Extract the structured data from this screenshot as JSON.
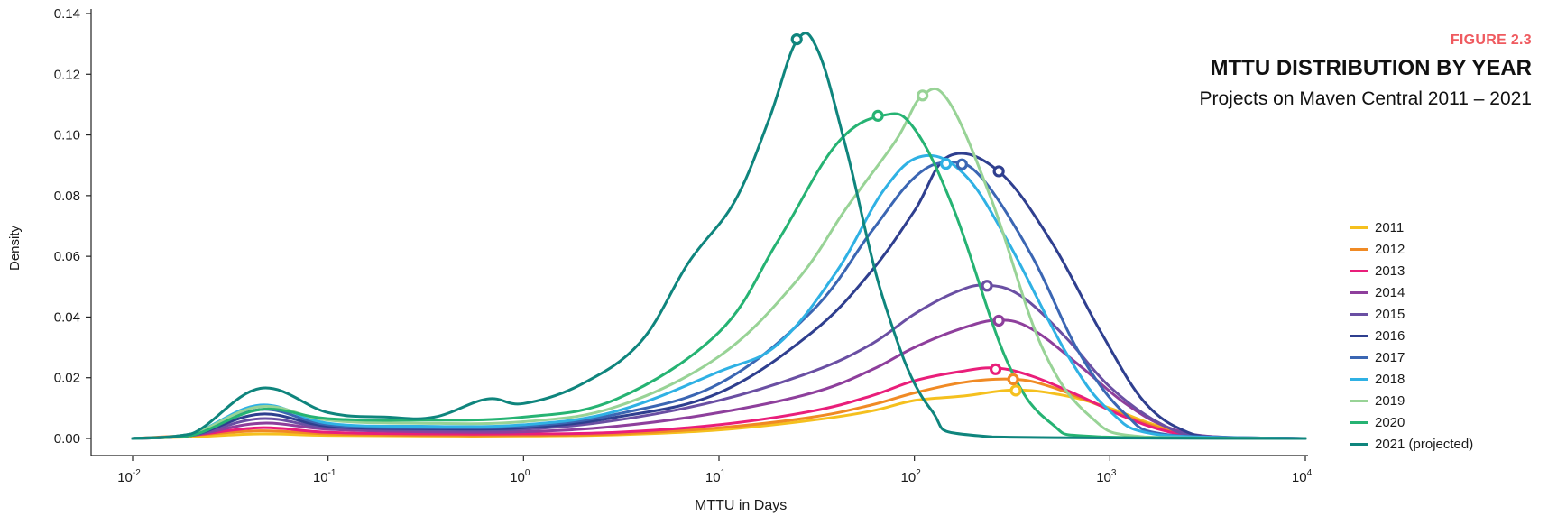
{
  "figure_label": "FIGURE 2.3",
  "chart_data": {
    "type": "line",
    "title": "MTTU DISTRIBUTION BY YEAR",
    "subtitle": "Projects on Maven Central 2011 – 2021",
    "xlabel": "MTTU in Days",
    "ylabel": "Density",
    "x_scale": "log",
    "xlim": [
      0.01,
      10000
    ],
    "ylim": [
      0,
      0.14
    ],
    "x_ticks": [
      {
        "base": "10",
        "exp": "-2"
      },
      {
        "base": "10",
        "exp": "-1"
      },
      {
        "base": "10",
        "exp": "0"
      },
      {
        "base": "10",
        "exp": "1"
      },
      {
        "base": "10",
        "exp": "2"
      },
      {
        "base": "10",
        "exp": "3"
      },
      {
        "base": "10",
        "exp": "4"
      }
    ],
    "y_ticks": [
      "0.00",
      "0.02",
      "0.04",
      "0.06",
      "0.08",
      "0.10",
      "0.12",
      "0.14"
    ],
    "grid": false,
    "legend_position": "right",
    "series": [
      {
        "name": "2011",
        "color": "#f5c01e",
        "points": [
          [
            0.01,
            0
          ],
          [
            0.02,
            0.0005
          ],
          [
            0.045,
            0.0015
          ],
          [
            0.1,
            0.001
          ],
          [
            0.3,
            0.0008
          ],
          [
            1,
            0.0008
          ],
          [
            3,
            0.0012
          ],
          [
            10,
            0.0028
          ],
          [
            30,
            0.006
          ],
          [
            60,
            0.009
          ],
          [
            100,
            0.0125
          ],
          [
            180,
            0.014
          ],
          [
            330,
            0.016
          ],
          [
            600,
            0.014
          ],
          [
            1000,
            0.01
          ],
          [
            1600,
            0.005
          ],
          [
            2500,
            0.0015
          ],
          [
            4000,
            0.0002
          ],
          [
            10000,
            0
          ]
        ],
        "marker": [
          330,
          0.0158
        ]
      },
      {
        "name": "2012",
        "color": "#f08a24",
        "points": [
          [
            0.01,
            0
          ],
          [
            0.02,
            0.001
          ],
          [
            0.045,
            0.0025
          ],
          [
            0.1,
            0.0015
          ],
          [
            0.3,
            0.001
          ],
          [
            1,
            0.001
          ],
          [
            3,
            0.0015
          ],
          [
            10,
            0.0035
          ],
          [
            30,
            0.007
          ],
          [
            60,
            0.011
          ],
          [
            100,
            0.015
          ],
          [
            180,
            0.0185
          ],
          [
            320,
            0.0195
          ],
          [
            500,
            0.017
          ],
          [
            1000,
            0.0095
          ],
          [
            1600,
            0.0045
          ],
          [
            2500,
            0.0012
          ],
          [
            4000,
            0.0002
          ],
          [
            10000,
            0
          ]
        ],
        "marker": [
          320,
          0.0195
        ]
      },
      {
        "name": "2013",
        "color": "#e91e7a",
        "points": [
          [
            0.01,
            0
          ],
          [
            0.02,
            0.001
          ],
          [
            0.045,
            0.0035
          ],
          [
            0.1,
            0.002
          ],
          [
            0.3,
            0.0015
          ],
          [
            1,
            0.0015
          ],
          [
            3,
            0.002
          ],
          [
            10,
            0.0045
          ],
          [
            30,
            0.009
          ],
          [
            60,
            0.014
          ],
          [
            100,
            0.019
          ],
          [
            170,
            0.022
          ],
          [
            260,
            0.0232
          ],
          [
            400,
            0.0205
          ],
          [
            700,
            0.014
          ],
          [
            1200,
            0.007
          ],
          [
            2000,
            0.0022
          ],
          [
            3500,
            0.0003
          ],
          [
            10000,
            0
          ]
        ],
        "marker": [
          260,
          0.0228
        ]
      },
      {
        "name": "2014",
        "color": "#8e3f9c",
        "points": [
          [
            0.01,
            0
          ],
          [
            0.02,
            0.001
          ],
          [
            0.045,
            0.005
          ],
          [
            0.1,
            0.003
          ],
          [
            0.3,
            0.0022
          ],
          [
            1,
            0.0022
          ],
          [
            3,
            0.004
          ],
          [
            10,
            0.0085
          ],
          [
            30,
            0.015
          ],
          [
            60,
            0.0225
          ],
          [
            100,
            0.03
          ],
          [
            170,
            0.036
          ],
          [
            270,
            0.039
          ],
          [
            400,
            0.036
          ],
          [
            700,
            0.024
          ],
          [
            1200,
            0.0115
          ],
          [
            2000,
            0.0035
          ],
          [
            3500,
            0.0005
          ],
          [
            10000,
            0
          ]
        ],
        "marker": [
          270,
          0.0388
        ]
      },
      {
        "name": "2015",
        "color": "#6a4fa3",
        "points": [
          [
            0.01,
            0
          ],
          [
            0.02,
            0.001
          ],
          [
            0.045,
            0.0065
          ],
          [
            0.1,
            0.0035
          ],
          [
            0.3,
            0.0028
          ],
          [
            1,
            0.003
          ],
          [
            3,
            0.006
          ],
          [
            10,
            0.0125
          ],
          [
            30,
            0.022
          ],
          [
            60,
            0.031
          ],
          [
            100,
            0.041
          ],
          [
            160,
            0.048
          ],
          [
            230,
            0.0505
          ],
          [
            350,
            0.047
          ],
          [
            600,
            0.033
          ],
          [
            1000,
            0.017
          ],
          [
            1800,
            0.005
          ],
          [
            3000,
            0.0008
          ],
          [
            10000,
            0
          ]
        ],
        "marker": [
          235,
          0.0503
        ]
      },
      {
        "name": "2016",
        "color": "#2f3f8f",
        "points": [
          [
            0.01,
            0
          ],
          [
            0.02,
            0.001
          ],
          [
            0.045,
            0.008
          ],
          [
            0.1,
            0.004
          ],
          [
            0.3,
            0.0032
          ],
          [
            1,
            0.0035
          ],
          [
            3,
            0.007
          ],
          [
            10,
            0.015
          ],
          [
            30,
            0.035
          ],
          [
            60,
            0.055
          ],
          [
            100,
            0.075
          ],
          [
            150,
            0.093
          ],
          [
            270,
            0.088
          ],
          [
            500,
            0.065
          ],
          [
            900,
            0.035
          ],
          [
            1500,
            0.012
          ],
          [
            2500,
            0.002
          ],
          [
            4000,
            0.0003
          ],
          [
            10000,
            0
          ]
        ],
        "marker": [
          270,
          0.088
        ]
      },
      {
        "name": "2017",
        "color": "#3b66b3",
        "points": [
          [
            0.01,
            0
          ],
          [
            0.02,
            0.001
          ],
          [
            0.045,
            0.0095
          ],
          [
            0.1,
            0.0045
          ],
          [
            0.3,
            0.0035
          ],
          [
            1,
            0.004
          ],
          [
            3,
            0.008
          ],
          [
            10,
            0.018
          ],
          [
            30,
            0.042
          ],
          [
            60,
            0.068
          ],
          [
            100,
            0.086
          ],
          [
            150,
            0.091
          ],
          [
            220,
            0.086
          ],
          [
            400,
            0.06
          ],
          [
            700,
            0.028
          ],
          [
            1200,
            0.008
          ],
          [
            2000,
            0.0012
          ],
          [
            10000,
            0
          ]
        ],
        "marker": [
          175,
          0.0903
        ]
      },
      {
        "name": "2018",
        "color": "#2fb1e4",
        "points": [
          [
            0.01,
            0
          ],
          [
            0.02,
            0.0015
          ],
          [
            0.045,
            0.011
          ],
          [
            0.1,
            0.005
          ],
          [
            0.3,
            0.004
          ],
          [
            1,
            0.0045
          ],
          [
            3,
            0.009
          ],
          [
            10,
            0.022
          ],
          [
            20,
            0.031
          ],
          [
            40,
            0.055
          ],
          [
            70,
            0.082
          ],
          [
            110,
            0.093
          ],
          [
            180,
            0.087
          ],
          [
            300,
            0.065
          ],
          [
            600,
            0.028
          ],
          [
            1000,
            0.009
          ],
          [
            1800,
            0.0012
          ],
          [
            10000,
            0
          ]
        ],
        "marker": [
          145,
          0.0905
        ]
      },
      {
        "name": "2019",
        "color": "#98d396",
        "points": [
          [
            0.01,
            0
          ],
          [
            0.02,
            0.0015
          ],
          [
            0.045,
            0.0105
          ],
          [
            0.1,
            0.006
          ],
          [
            0.3,
            0.005
          ],
          [
            1,
            0.0055
          ],
          [
            3,
            0.0105
          ],
          [
            10,
            0.027
          ],
          [
            25,
            0.052
          ],
          [
            45,
            0.076
          ],
          [
            80,
            0.098
          ],
          [
            110,
            0.113
          ],
          [
            150,
            0.111
          ],
          [
            250,
            0.078
          ],
          [
            450,
            0.03
          ],
          [
            800,
            0.007
          ],
          [
            1500,
            0.0005
          ],
          [
            10000,
            0
          ]
        ],
        "marker": [
          110,
          0.113
        ]
      },
      {
        "name": "2020",
        "color": "#26b373",
        "points": [
          [
            0.01,
            0
          ],
          [
            0.02,
            0.001
          ],
          [
            0.045,
            0.0095
          ],
          [
            0.1,
            0.0065
          ],
          [
            0.3,
            0.006
          ],
          [
            1,
            0.007
          ],
          [
            3,
            0.013
          ],
          [
            10,
            0.035
          ],
          [
            20,
            0.065
          ],
          [
            40,
            0.097
          ],
          [
            70,
            0.1065
          ],
          [
            100,
            0.102
          ],
          [
            160,
            0.075
          ],
          [
            300,
            0.025
          ],
          [
            500,
            0.005
          ],
          [
            900,
            0.0005
          ],
          [
            10000,
            0
          ]
        ],
        "marker": [
          65,
          0.1063
        ]
      },
      {
        "name": "2021 (projected)",
        "color": "#0f857d",
        "points": [
          [
            0.01,
            0
          ],
          [
            0.02,
            0.0015
          ],
          [
            0.045,
            0.0165
          ],
          [
            0.1,
            0.0085
          ],
          [
            0.2,
            0.007
          ],
          [
            0.35,
            0.007
          ],
          [
            0.65,
            0.013
          ],
          [
            1,
            0.0115
          ],
          [
            2,
            0.018
          ],
          [
            4,
            0.032
          ],
          [
            7,
            0.058
          ],
          [
            12,
            0.078
          ],
          [
            18,
            0.105
          ],
          [
            25,
            0.131
          ],
          [
            32,
            0.128
          ],
          [
            45,
            0.095
          ],
          [
            70,
            0.045
          ],
          [
            120,
            0.01
          ],
          [
            250,
            0.0005
          ],
          [
            10000,
            0
          ]
        ],
        "marker": [
          25,
          0.1315
        ]
      }
    ]
  }
}
